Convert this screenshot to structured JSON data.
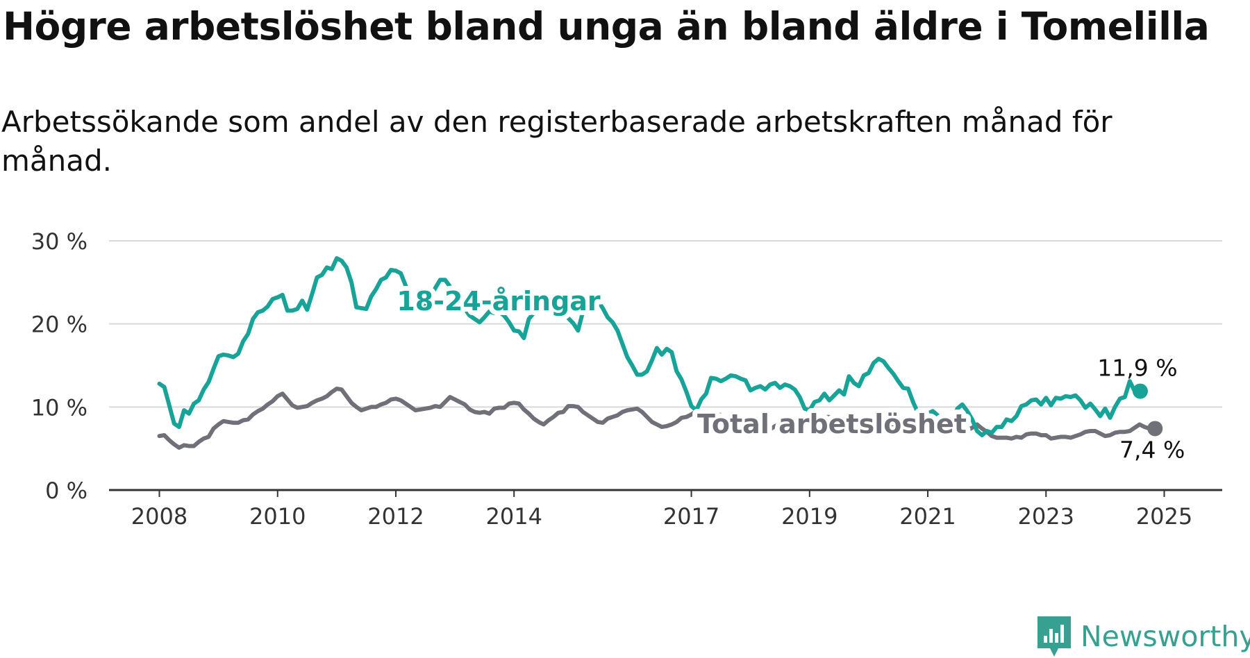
{
  "title": "Högre arbetslöshet bland unga än bland äldre i Tomelilla",
  "subtitle": "Arbetssökande som andel av den registerbaserade arbetskraften månad för månad.",
  "brand": {
    "name": "Newsworthy",
    "icon": "newsworthy-logo-icon"
  },
  "colors": {
    "young": "#17a398",
    "total": "#707078",
    "grid": "#d9d9d9",
    "axis": "#333333",
    "brand": "#37a090"
  },
  "chart_data": {
    "type": "line",
    "y_unit": "%",
    "ylim": [
      0,
      30
    ],
    "y_ticks": [
      0,
      10,
      20,
      30
    ],
    "y_tick_labels": [
      "0 %",
      "10 %",
      "20 %",
      "30 %"
    ],
    "x_ticks": [
      2008,
      2010,
      2012,
      2014,
      2017,
      2019,
      2021,
      2023,
      2025
    ],
    "x_tick_labels": [
      "2008",
      "2010",
      "2012",
      "2014",
      "2017",
      "2019",
      "2021",
      "2023",
      "2025"
    ],
    "grid": "horizontal",
    "x_start": "2008-01",
    "series": [
      {
        "name": "18-24-åringar",
        "color": "#17a398",
        "end_label": "11,9 %",
        "values": [
          12.8,
          12.4,
          10.2,
          8.0,
          7.6,
          9.6,
          9.2,
          10.4,
          10.8,
          12.1,
          13.0,
          14.6,
          16.1,
          16.3,
          16.2,
          16.0,
          16.4,
          17.9,
          18.8,
          20.6,
          21.4,
          21.6,
          22.1,
          23.0,
          23.2,
          23.5,
          21.6,
          21.6,
          21.8,
          22.8,
          21.7,
          23.6,
          25.6,
          25.9,
          26.8,
          26.6,
          27.9,
          27.6,
          26.8,
          25.0,
          22.0,
          21.9,
          21.8,
          23.3,
          24.2,
          25.3,
          25.6,
          26.5,
          26.4,
          26.1,
          24.6,
          23.2,
          22.0,
          21.6,
          22.1,
          23.3,
          24.3,
          25.3,
          25.3,
          24.5,
          23.7,
          22.5,
          21.8,
          21.0,
          20.6,
          20.2,
          20.8,
          21.5,
          21.3,
          21.4,
          21.0,
          20.2,
          19.2,
          19.1,
          18.3,
          20.6,
          21.3,
          21.8,
          22.7,
          22.2,
          22.0,
          21.8,
          21.4,
          20.7,
          20.1,
          19.2,
          21.5,
          21.8,
          22.2,
          22.8,
          21.9,
          20.8,
          20.2,
          19.2,
          17.6,
          16.0,
          15.0,
          13.9,
          13.9,
          14.3,
          15.6,
          17.1,
          16.3,
          17.0,
          16.6,
          14.3,
          13.3,
          11.8,
          10.1,
          9.6,
          10.9,
          11.6,
          13.5,
          13.4,
          13.1,
          13.4,
          13.8,
          13.7,
          13.4,
          13.2,
          12.0,
          12.3,
          12.5,
          12.1,
          12.7,
          12.9,
          12.3,
          12.7,
          12.5,
          12.1,
          11.2,
          9.8,
          9.6,
          10.6,
          10.8,
          11.6,
          10.8,
          11.4,
          12.0,
          11.5,
          13.7,
          12.9,
          12.5,
          13.8,
          14.1,
          15.3,
          15.8,
          15.5,
          14.7,
          14.0,
          13.1,
          12.3,
          12.2,
          10.6,
          9.3,
          8.8,
          9.2,
          9.5,
          9.0,
          8.1,
          8.2,
          8.3,
          9.8,
          10.3,
          9.5,
          8.5,
          7.1,
          6.6,
          7.1,
          6.9,
          7.6,
          7.6,
          8.5,
          8.3,
          8.9,
          10.1,
          10.3,
          10.8,
          10.9,
          10.3,
          11.1,
          10.2,
          11.1,
          11.0,
          11.3,
          11.2,
          11.4,
          10.8,
          9.9,
          10.4,
          9.7,
          8.9,
          9.8,
          8.7,
          10.0,
          11.0,
          11.2,
          13.1,
          11.9
        ]
      },
      {
        "name": "Total arbetslöshet",
        "color": "#707078",
        "end_label": "7,4 %",
        "values": [
          6.5,
          6.6,
          6.0,
          5.5,
          5.1,
          5.4,
          5.3,
          5.3,
          5.8,
          6.2,
          6.4,
          7.4,
          7.9,
          8.3,
          8.2,
          8.1,
          8.1,
          8.4,
          8.5,
          9.1,
          9.5,
          9.8,
          10.3,
          10.7,
          11.3,
          11.6,
          10.9,
          10.2,
          9.9,
          10.0,
          10.1,
          10.5,
          10.8,
          11.0,
          11.3,
          11.8,
          12.2,
          12.1,
          11.3,
          10.5,
          10.0,
          9.6,
          9.8,
          10.0,
          10.0,
          10.3,
          10.5,
          10.9,
          11.0,
          10.8,
          10.4,
          10.0,
          9.6,
          9.7,
          9.8,
          9.9,
          10.1,
          10.0,
          10.6,
          11.2,
          10.9,
          10.6,
          10.3,
          9.7,
          9.4,
          9.3,
          9.4,
          9.2,
          9.8,
          9.9,
          9.9,
          10.4,
          10.5,
          10.4,
          9.7,
          9.2,
          8.6,
          8.2,
          7.9,
          8.4,
          8.8,
          9.3,
          9.4,
          10.1,
          10.1,
          10.0,
          9.4,
          9.0,
          8.6,
          8.2,
          8.1,
          8.6,
          8.8,
          9.0,
          9.4,
          9.6,
          9.7,
          9.8,
          9.4,
          8.8,
          8.2,
          7.9,
          7.6,
          7.7,
          7.9,
          8.2,
          8.7,
          8.8,
          9.1,
          9.5,
          9.4,
          9.2,
          9.3,
          9.3,
          9.0,
          8.7,
          8.5,
          8.2,
          8.3,
          8.0,
          7.8,
          7.9,
          7.6,
          7.4,
          7.3,
          7.7,
          7.9,
          8.0,
          8.1,
          8.1,
          8.0,
          8.1,
          8.5,
          8.6,
          8.5,
          8.8,
          8.8,
          8.6,
          8.3,
          8.1,
          7.8,
          7.6,
          7.6,
          7.3,
          7.3,
          7.7,
          8.1,
          8.2,
          8.0,
          7.8,
          7.5,
          7.5,
          7.4,
          7.6,
          8.1,
          8.3,
          8.0,
          7.6,
          7.3,
          7.5,
          7.5,
          7.8,
          7.5,
          7.4,
          7.2,
          7.5,
          7.9,
          7.4,
          7.0,
          6.5,
          6.3,
          6.3,
          6.3,
          6.2,
          6.4,
          6.3,
          6.7,
          6.8,
          6.8,
          6.6,
          6.6,
          6.2,
          6.3,
          6.4,
          6.4,
          6.3,
          6.5,
          6.7,
          7.0,
          7.1,
          7.1,
          6.8,
          6.5,
          6.6,
          6.9,
          7.0,
          7.0,
          7.1,
          7.5,
          7.9,
          7.6,
          7.4
        ]
      }
    ]
  }
}
